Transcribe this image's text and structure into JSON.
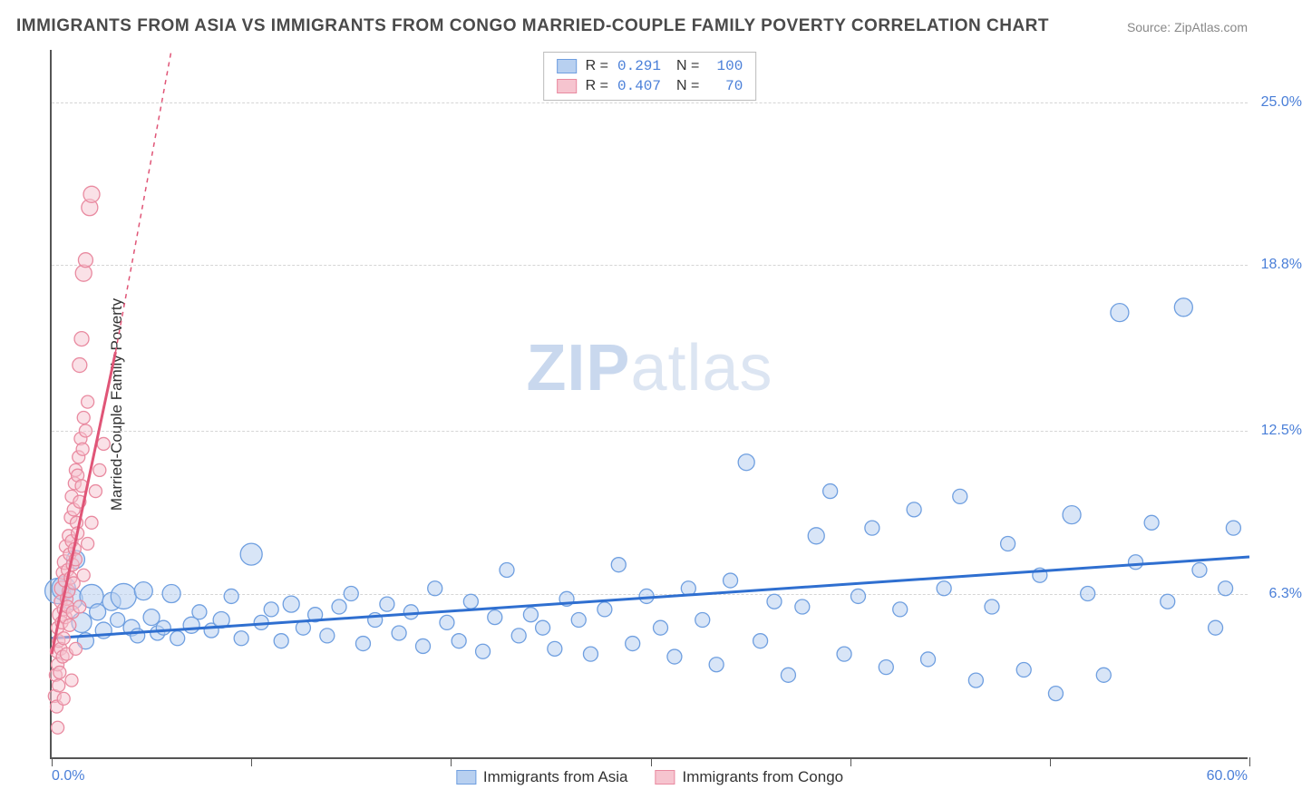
{
  "title": "IMMIGRANTS FROM ASIA VS IMMIGRANTS FROM CONGO MARRIED-COUPLE FAMILY POVERTY CORRELATION CHART",
  "source": "Source: ZipAtlas.com",
  "y_axis_label": "Married-Couple Family Poverty",
  "watermark": {
    "bold": "ZIP",
    "light": "atlas"
  },
  "chart": {
    "type": "scatter",
    "background_color": "#ffffff",
    "grid_color": "#d5d5d5",
    "axis_color": "#555555",
    "xlim": [
      0,
      60
    ],
    "ylim": [
      0,
      27
    ],
    "x_tick_positions": [
      0,
      10,
      20,
      30,
      40,
      50,
      60
    ],
    "x_start_label": "0.0%",
    "x_end_label": "60.0%",
    "y_ticks": [
      {
        "pos": 6.3,
        "label": "6.3%"
      },
      {
        "pos": 12.5,
        "label": "12.5%"
      },
      {
        "pos": 18.8,
        "label": "18.8%"
      },
      {
        "pos": 25.0,
        "label": "25.0%"
      }
    ],
    "y_tick_color": "#4a7fd8",
    "y_tick_fontsize": 16
  },
  "legend_top": {
    "border_color": "#bbbbbb",
    "rows": [
      {
        "swatch_fill": "#b8d0f0",
        "swatch_stroke": "#6f9fe0",
        "r_label": "R =",
        "r_value": "0.291",
        "n_label": "N =",
        "n_value": "100"
      },
      {
        "swatch_fill": "#f6c4cf",
        "swatch_stroke": "#e98aa0",
        "r_label": "R =",
        "r_value": "0.407",
        "n_label": "N =",
        "n_value": "70"
      }
    ]
  },
  "legend_bottom": {
    "items": [
      {
        "swatch_fill": "#b8d0f0",
        "swatch_stroke": "#6f9fe0",
        "label": "Immigrants from Asia"
      },
      {
        "swatch_fill": "#f6c4cf",
        "swatch_stroke": "#e98aa0",
        "label": "Immigrants from Congo"
      }
    ]
  },
  "series": [
    {
      "name": "asia",
      "marker_fill": "#b8d0f0",
      "marker_stroke": "#6f9fe0",
      "marker_fill_opacity": 0.55,
      "trend": {
        "color": "#2f6fd0",
        "width": 3,
        "x1": 0,
        "y1": 4.6,
        "x2": 60,
        "y2": 7.7
      },
      "points": [
        [
          0.3,
          6.4,
          14
        ],
        [
          0.6,
          6.5,
          13
        ],
        [
          1.0,
          6.1,
          12
        ],
        [
          1.2,
          7.6,
          10
        ],
        [
          1.5,
          5.2,
          11
        ],
        [
          1.7,
          4.5,
          9
        ],
        [
          2.0,
          6.2,
          13
        ],
        [
          2.3,
          5.6,
          9
        ],
        [
          2.6,
          4.9,
          9
        ],
        [
          3.0,
          6.0,
          10
        ],
        [
          3.3,
          5.3,
          8
        ],
        [
          3.6,
          6.2,
          14
        ],
        [
          4.0,
          5.0,
          9
        ],
        [
          4.3,
          4.7,
          8
        ],
        [
          4.6,
          6.4,
          10
        ],
        [
          5.0,
          5.4,
          9
        ],
        [
          5.3,
          4.8,
          8
        ],
        [
          5.6,
          5.0,
          8
        ],
        [
          6.0,
          6.3,
          10
        ],
        [
          6.3,
          4.6,
          8
        ],
        [
          7.0,
          5.1,
          9
        ],
        [
          7.4,
          5.6,
          8
        ],
        [
          8.0,
          4.9,
          8
        ],
        [
          8.5,
          5.3,
          9
        ],
        [
          9.0,
          6.2,
          8
        ],
        [
          9.5,
          4.6,
          8
        ],
        [
          10.0,
          7.8,
          12
        ],
        [
          10.5,
          5.2,
          8
        ],
        [
          11.0,
          5.7,
          8
        ],
        [
          11.5,
          4.5,
          8
        ],
        [
          12.0,
          5.9,
          9
        ],
        [
          12.6,
          5.0,
          8
        ],
        [
          13.2,
          5.5,
          8
        ],
        [
          13.8,
          4.7,
          8
        ],
        [
          14.4,
          5.8,
          8
        ],
        [
          15.0,
          6.3,
          8
        ],
        [
          15.6,
          4.4,
          8
        ],
        [
          16.2,
          5.3,
          8
        ],
        [
          16.8,
          5.9,
          8
        ],
        [
          17.4,
          4.8,
          8
        ],
        [
          18.0,
          5.6,
          8
        ],
        [
          18.6,
          4.3,
          8
        ],
        [
          19.2,
          6.5,
          8
        ],
        [
          19.8,
          5.2,
          8
        ],
        [
          20.4,
          4.5,
          8
        ],
        [
          21.0,
          6.0,
          8
        ],
        [
          21.6,
          4.1,
          8
        ],
        [
          22.2,
          5.4,
          8
        ],
        [
          22.8,
          7.2,
          8
        ],
        [
          23.4,
          4.7,
          8
        ],
        [
          24.0,
          5.5,
          8
        ],
        [
          24.6,
          5.0,
          8
        ],
        [
          25.2,
          4.2,
          8
        ],
        [
          25.8,
          6.1,
          8
        ],
        [
          26.4,
          5.3,
          8
        ],
        [
          27.0,
          4.0,
          8
        ],
        [
          27.7,
          5.7,
          8
        ],
        [
          28.4,
          7.4,
          8
        ],
        [
          29.1,
          4.4,
          8
        ],
        [
          29.8,
          6.2,
          8
        ],
        [
          30.5,
          5.0,
          8
        ],
        [
          31.2,
          3.9,
          8
        ],
        [
          31.9,
          6.5,
          8
        ],
        [
          32.6,
          5.3,
          8
        ],
        [
          33.3,
          3.6,
          8
        ],
        [
          34.0,
          6.8,
          8
        ],
        [
          34.8,
          11.3,
          9
        ],
        [
          35.5,
          4.5,
          8
        ],
        [
          36.2,
          6.0,
          8
        ],
        [
          36.9,
          3.2,
          8
        ],
        [
          37.6,
          5.8,
          8
        ],
        [
          38.3,
          8.5,
          9
        ],
        [
          39.0,
          10.2,
          8
        ],
        [
          39.7,
          4.0,
          8
        ],
        [
          40.4,
          6.2,
          8
        ],
        [
          41.1,
          8.8,
          8
        ],
        [
          41.8,
          3.5,
          8
        ],
        [
          42.5,
          5.7,
          8
        ],
        [
          43.2,
          9.5,
          8
        ],
        [
          43.9,
          3.8,
          8
        ],
        [
          44.7,
          6.5,
          8
        ],
        [
          45.5,
          10.0,
          8
        ],
        [
          46.3,
          3.0,
          8
        ],
        [
          47.1,
          5.8,
          8
        ],
        [
          47.9,
          8.2,
          8
        ],
        [
          48.7,
          3.4,
          8
        ],
        [
          49.5,
          7.0,
          8
        ],
        [
          50.3,
          2.5,
          8
        ],
        [
          51.1,
          9.3,
          10
        ],
        [
          51.9,
          6.3,
          8
        ],
        [
          52.7,
          3.2,
          8
        ],
        [
          53.5,
          17.0,
          10
        ],
        [
          54.3,
          7.5,
          8
        ],
        [
          55.1,
          9.0,
          8
        ],
        [
          55.9,
          6.0,
          8
        ],
        [
          56.7,
          17.2,
          10
        ],
        [
          57.5,
          7.2,
          8
        ],
        [
          58.3,
          5.0,
          8
        ],
        [
          58.8,
          6.5,
          8
        ],
        [
          59.2,
          8.8,
          8
        ]
      ]
    },
    {
      "name": "congo",
      "marker_fill": "#f6c4cf",
      "marker_stroke": "#e98aa0",
      "marker_fill_opacity": 0.5,
      "trend": {
        "color": "#e05577",
        "width": 3,
        "x1": 0,
        "y1": 4.0,
        "x2": 3.2,
        "y2": 15.5,
        "dash_x2": 6.0,
        "dash_y2": 27.0
      },
      "points": [
        [
          0.15,
          2.4,
          7
        ],
        [
          0.2,
          3.2,
          7
        ],
        [
          0.25,
          4.1,
          7
        ],
        [
          0.25,
          2.0,
          7
        ],
        [
          0.3,
          3.6,
          7
        ],
        [
          0.3,
          5.0,
          7
        ],
        [
          0.35,
          4.5,
          7
        ],
        [
          0.35,
          2.8,
          7
        ],
        [
          0.4,
          5.5,
          8
        ],
        [
          0.4,
          3.3,
          7
        ],
        [
          0.45,
          6.0,
          7
        ],
        [
          0.45,
          4.2,
          7
        ],
        [
          0.5,
          5.2,
          7
        ],
        [
          0.5,
          6.5,
          8
        ],
        [
          0.55,
          7.1,
          7
        ],
        [
          0.55,
          3.9,
          7
        ],
        [
          0.6,
          5.7,
          7
        ],
        [
          0.6,
          4.6,
          7
        ],
        [
          0.65,
          6.8,
          7
        ],
        [
          0.65,
          7.5,
          8
        ],
        [
          0.7,
          5.4,
          7
        ],
        [
          0.7,
          8.1,
          7
        ],
        [
          0.75,
          6.1,
          7
        ],
        [
          0.75,
          4.0,
          7
        ],
        [
          0.8,
          7.2,
          7
        ],
        [
          0.8,
          5.8,
          7
        ],
        [
          0.85,
          8.5,
          7
        ],
        [
          0.85,
          6.4,
          7
        ],
        [
          0.9,
          7.8,
          7
        ],
        [
          0.9,
          5.1,
          7
        ],
        [
          0.95,
          9.2,
          7
        ],
        [
          0.95,
          6.9,
          7
        ],
        [
          1.0,
          8.3,
          7
        ],
        [
          1.0,
          10.0,
          7
        ],
        [
          1.05,
          7.4,
          7
        ],
        [
          1.05,
          5.6,
          7
        ],
        [
          1.1,
          9.5,
          7
        ],
        [
          1.1,
          6.7,
          7
        ],
        [
          1.15,
          10.5,
          7
        ],
        [
          1.15,
          8.0,
          7
        ],
        [
          1.2,
          11.0,
          7
        ],
        [
          1.2,
          7.6,
          7
        ],
        [
          1.25,
          9.0,
          7
        ],
        [
          1.3,
          10.8,
          7
        ],
        [
          1.3,
          8.6,
          7
        ],
        [
          1.35,
          11.5,
          7
        ],
        [
          1.4,
          9.8,
          7
        ],
        [
          1.45,
          12.2,
          7
        ],
        [
          1.5,
          10.4,
          7
        ],
        [
          1.55,
          11.8,
          7
        ],
        [
          1.6,
          13.0,
          7
        ],
        [
          1.7,
          12.5,
          7
        ],
        [
          1.8,
          13.6,
          7
        ],
        [
          1.5,
          16.0,
          8
        ],
        [
          1.6,
          18.5,
          9
        ],
        [
          1.7,
          19.0,
          8
        ],
        [
          1.4,
          15.0,
          8
        ],
        [
          1.9,
          21.0,
          9
        ],
        [
          2.0,
          21.5,
          9
        ],
        [
          0.3,
          1.2,
          7
        ],
        [
          0.6,
          2.3,
          7
        ],
        [
          1.0,
          3.0,
          7
        ],
        [
          1.2,
          4.2,
          7
        ],
        [
          1.4,
          5.8,
          7
        ],
        [
          1.6,
          7.0,
          7
        ],
        [
          1.8,
          8.2,
          7
        ],
        [
          2.0,
          9.0,
          7
        ],
        [
          2.2,
          10.2,
          7
        ],
        [
          2.4,
          11.0,
          7
        ],
        [
          2.6,
          12.0,
          7
        ]
      ]
    }
  ]
}
